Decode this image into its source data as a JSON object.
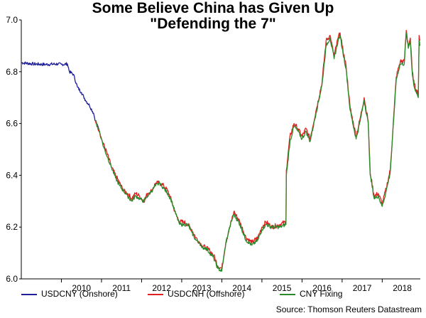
{
  "chart_data": {
    "type": "line",
    "title": "Some Believe China has Given Up",
    "subtitle": "\"Defending the 7\"",
    "source": "Source: Thomson Reuters Datastream",
    "ylim": [
      6.0,
      7.0
    ],
    "xlim": [
      2009.0,
      2018.95
    ],
    "y_ticks": [
      "6.0",
      "6.2",
      "6.4",
      "6.6",
      "6.8",
      "7.0"
    ],
    "x_ticks": [
      "2010",
      "2011",
      "2012",
      "2013",
      "2014",
      "2015",
      "2016",
      "2017",
      "2018"
    ],
    "grid": false,
    "legend_position": "bottom",
    "series": [
      {
        "name": "USDCNY (Onshore)",
        "color": "#1f1f9a",
        "x": [
          2009.0,
          2009.3,
          2009.6,
          2009.9,
          2010.0,
          2010.15,
          2010.2,
          2010.3,
          2010.4,
          2010.5,
          2010.6,
          2010.7,
          2010.8,
          2010.85,
          2010.95
        ],
        "y": [
          6.835,
          6.83,
          6.828,
          6.83,
          6.828,
          6.83,
          6.8,
          6.79,
          6.74,
          6.72,
          6.69,
          6.67,
          6.64,
          6.61,
          6.57
        ]
      },
      {
        "name": "USDCNH (Offshore)",
        "color": "#e02020",
        "x": [
          2010.85,
          2010.95,
          2011.0,
          2011.05,
          2011.15,
          2011.25,
          2011.35,
          2011.45,
          2011.55,
          2011.65,
          2011.75,
          2011.85,
          2011.95,
          2012.05,
          2012.15,
          2012.25,
          2012.35,
          2012.45,
          2012.55,
          2012.65,
          2012.75,
          2012.85,
          2012.95,
          2013.05,
          2013.15,
          2013.25,
          2013.35,
          2013.45,
          2013.5,
          2013.6,
          2013.7,
          2013.8,
          2013.9,
          2014.0,
          2014.1,
          2014.2,
          2014.3,
          2014.45,
          2014.6,
          2014.75,
          2014.9,
          2015.0,
          2015.1,
          2015.25,
          2015.45,
          2015.6,
          2015.61,
          2015.7,
          2015.8,
          2015.9,
          2016.0,
          2016.1,
          2016.2,
          2016.35,
          2016.5,
          2016.6,
          2016.7,
          2016.8,
          2016.9,
          2016.95,
          2017.0,
          2017.1,
          2017.2,
          2017.35,
          2017.45,
          2017.55,
          2017.65,
          2017.7,
          2017.8,
          2017.9,
          2018.0,
          2018.1,
          2018.2,
          2018.3,
          2018.35,
          2018.45,
          2018.55,
          2018.6,
          2018.65,
          2018.7,
          2018.75,
          2018.8,
          2018.85
        ],
        "y": [
          6.61,
          6.57,
          6.54,
          6.52,
          6.48,
          6.43,
          6.4,
          6.37,
          6.34,
          6.33,
          6.31,
          6.33,
          6.32,
          6.3,
          6.33,
          6.34,
          6.37,
          6.37,
          6.36,
          6.34,
          6.3,
          6.25,
          6.22,
          6.22,
          6.21,
          6.19,
          6.16,
          6.14,
          6.13,
          6.12,
          6.11,
          6.09,
          6.05,
          6.04,
          6.14,
          6.2,
          6.26,
          6.22,
          6.16,
          6.14,
          6.16,
          6.2,
          6.22,
          6.2,
          6.21,
          6.22,
          6.42,
          6.55,
          6.6,
          6.58,
          6.55,
          6.58,
          6.54,
          6.65,
          6.76,
          6.92,
          6.94,
          6.86,
          6.93,
          6.95,
          6.9,
          6.82,
          6.66,
          6.55,
          6.62,
          6.7,
          6.61,
          6.41,
          6.32,
          6.33,
          6.29,
          6.35,
          6.42,
          6.66,
          6.78,
          6.84,
          6.84,
          6.96,
          6.9,
          6.93,
          6.8,
          6.75,
          6.73
        ],
        "tail": [
          6.72,
          6.71,
          6.94,
          6.92
        ]
      },
      {
        "name": "CNY Fixing",
        "color": "#2a8a2a",
        "x": [
          2010.85,
          2010.95,
          2011.0,
          2011.05,
          2011.15,
          2011.25,
          2011.35,
          2011.45,
          2011.55,
          2011.65,
          2011.75,
          2011.85,
          2011.95,
          2012.05,
          2012.15,
          2012.25,
          2012.35,
          2012.45,
          2012.55,
          2012.65,
          2012.75,
          2012.85,
          2012.95,
          2013.05,
          2013.15,
          2013.25,
          2013.35,
          2013.45,
          2013.5,
          2013.6,
          2013.7,
          2013.8,
          2013.9,
          2014.0,
          2014.1,
          2014.2,
          2014.3,
          2014.45,
          2014.6,
          2014.75,
          2014.9,
          2015.0,
          2015.1,
          2015.25,
          2015.45,
          2015.6,
          2015.61,
          2015.7,
          2015.8,
          2015.9,
          2016.0,
          2016.1,
          2016.2,
          2016.35,
          2016.5,
          2016.6,
          2016.7,
          2016.8,
          2016.9,
          2016.95,
          2017.0,
          2017.1,
          2017.2,
          2017.35,
          2017.45,
          2017.55,
          2017.65,
          2017.7,
          2017.8,
          2017.9,
          2018.0,
          2018.1,
          2018.2,
          2018.3,
          2018.35,
          2018.45,
          2018.55,
          2018.6,
          2018.65,
          2018.7,
          2018.75,
          2018.8,
          2018.85
        ],
        "y": [
          6.61,
          6.57,
          6.54,
          6.51,
          6.47,
          6.43,
          6.39,
          6.36,
          6.34,
          6.32,
          6.3,
          6.32,
          6.31,
          6.3,
          6.32,
          6.34,
          6.36,
          6.37,
          6.35,
          6.33,
          6.3,
          6.25,
          6.21,
          6.21,
          6.21,
          6.18,
          6.15,
          6.14,
          6.12,
          6.12,
          6.1,
          6.08,
          6.04,
          6.03,
          6.14,
          6.2,
          6.25,
          6.21,
          6.15,
          6.13,
          6.15,
          6.19,
          6.21,
          6.2,
          6.2,
          6.21,
          6.4,
          6.53,
          6.59,
          6.57,
          6.54,
          6.57,
          6.53,
          6.64,
          6.75,
          6.9,
          6.93,
          6.85,
          6.92,
          6.94,
          6.89,
          6.81,
          6.65,
          6.54,
          6.61,
          6.69,
          6.6,
          6.4,
          6.31,
          6.32,
          6.28,
          6.34,
          6.41,
          6.65,
          6.77,
          6.83,
          6.83,
          6.95,
          6.89,
          6.92,
          6.79,
          6.74,
          6.72
        ],
        "tail": [
          6.71,
          6.7,
          6.92,
          6.9
        ]
      }
    ]
  }
}
